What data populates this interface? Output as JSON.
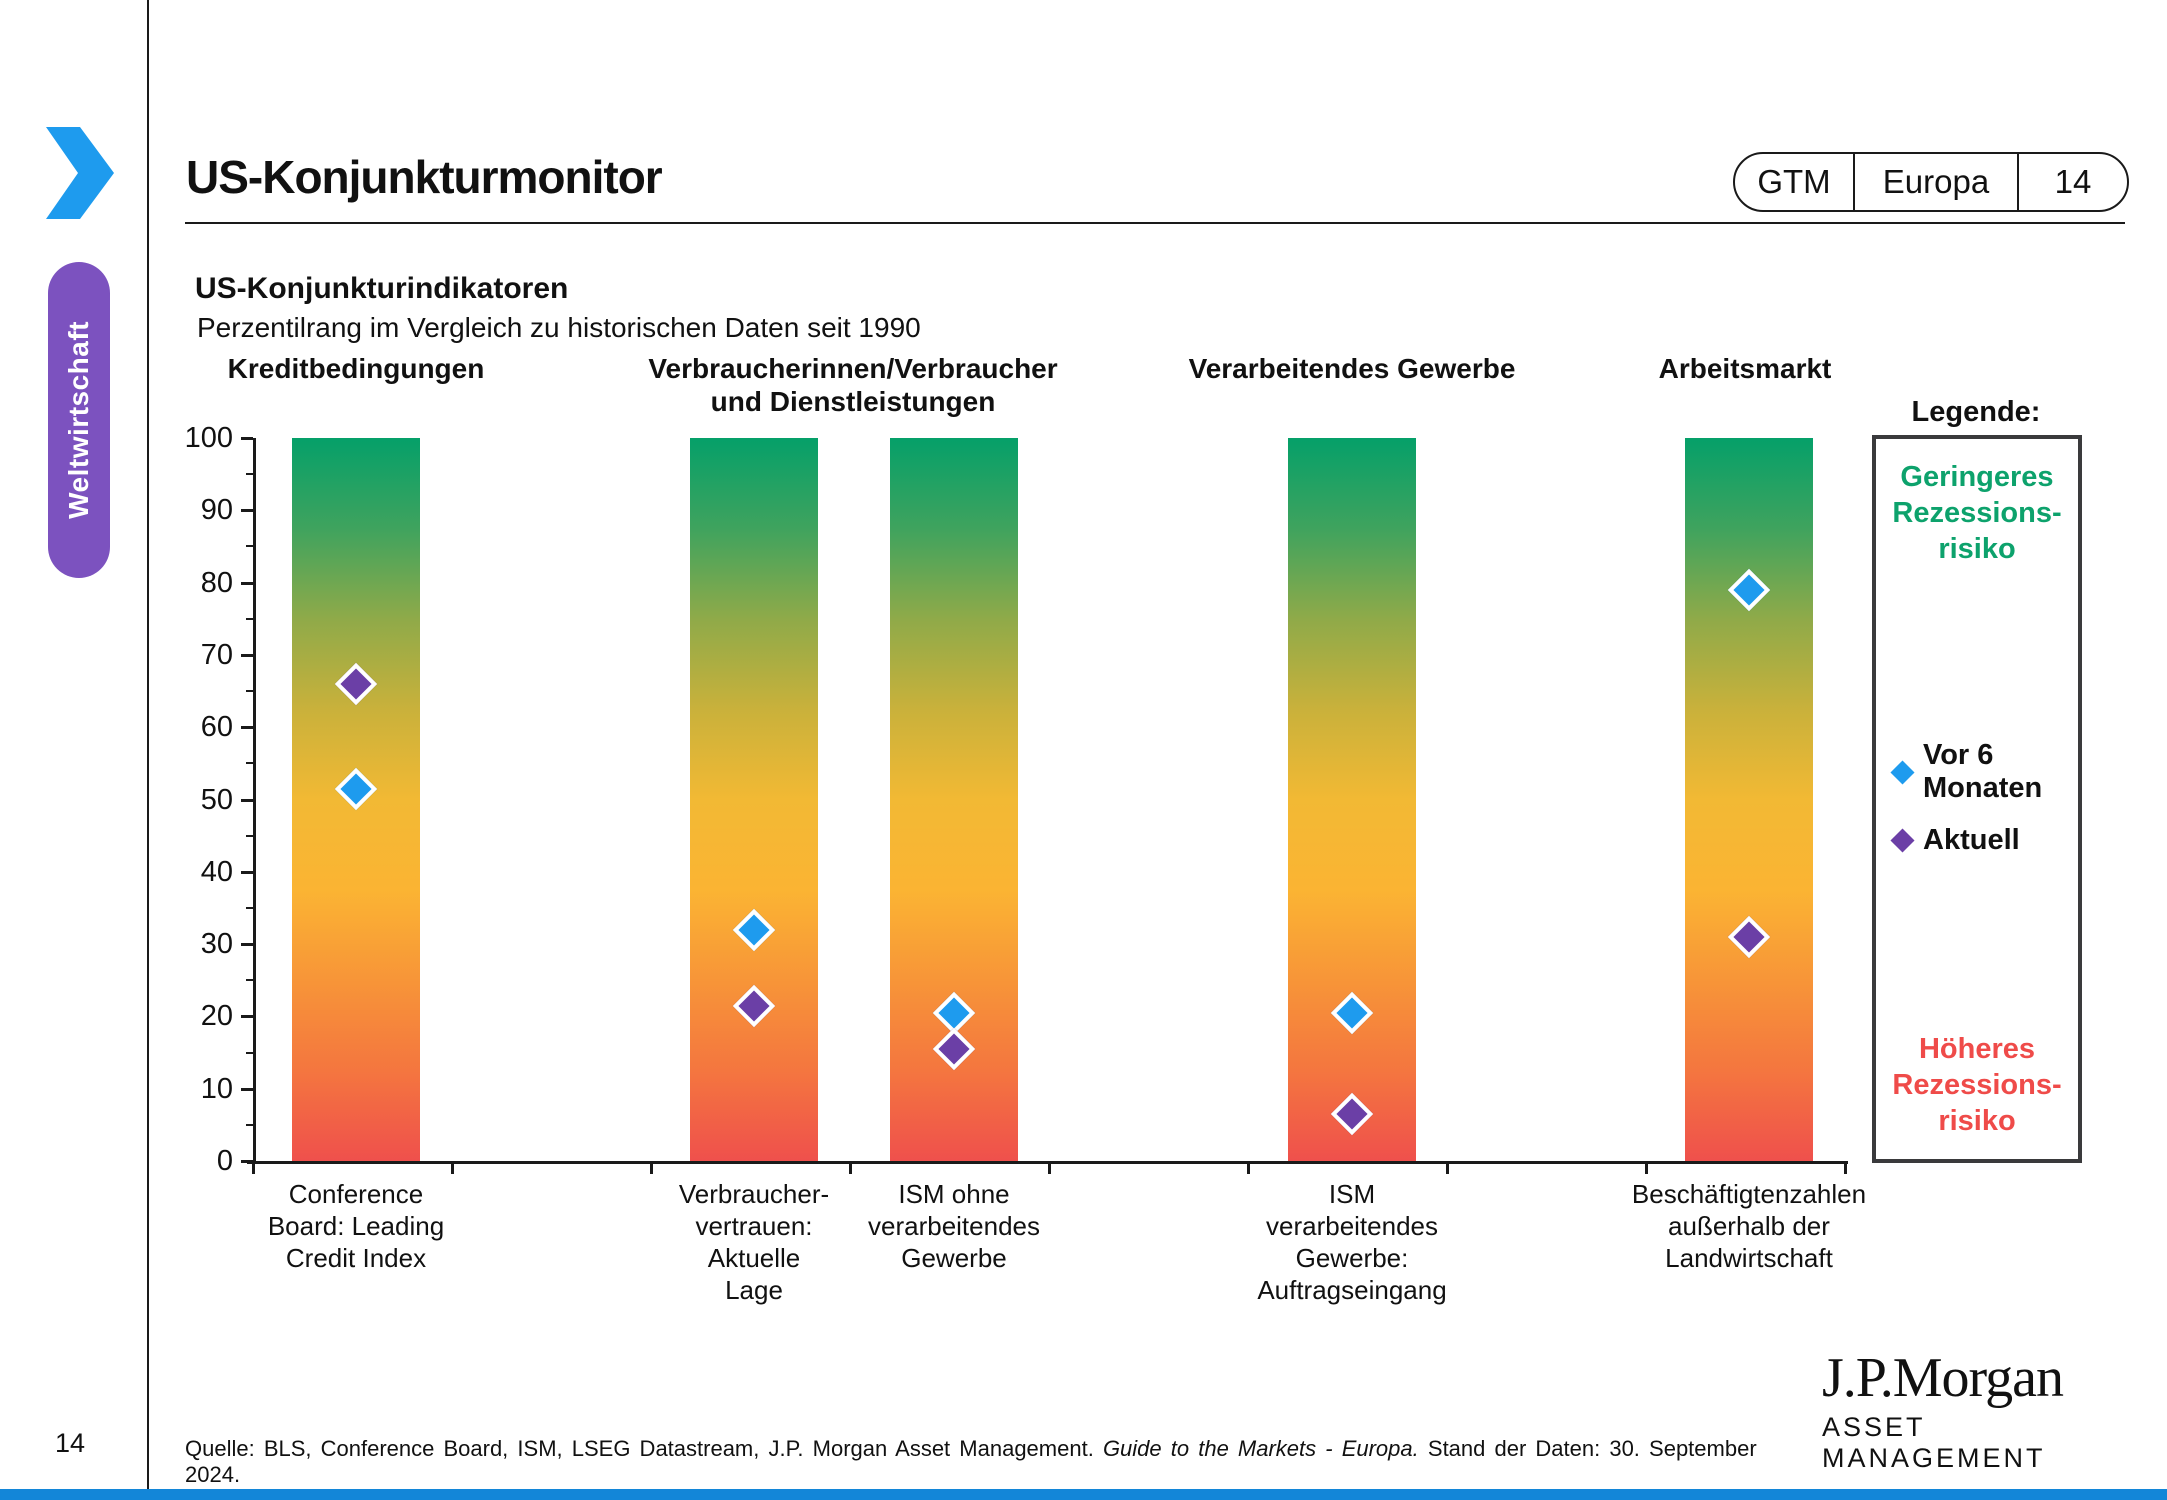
{
  "page": {
    "title": "US-Konjunkturmonitor",
    "sidebar_label": "Weltwirtschaft",
    "page_number": "14",
    "colors": {
      "accent_blue": "#1E9BEE",
      "sidebar_purple": "#7C52BF",
      "footer_bar_blue": "#1386D8"
    }
  },
  "badge": {
    "items": [
      "GTM",
      "Europa",
      "14"
    ]
  },
  "chart_data": {
    "type": "scatter",
    "title": "US-Konjunkturindikatoren",
    "subtitle": "Perzentilrang im Vergleich zu historischen Daten seit 1990",
    "ylim": [
      0,
      100
    ],
    "yticks": [
      0,
      10,
      20,
      30,
      40,
      50,
      60,
      70,
      80,
      90,
      100
    ],
    "grid": false,
    "legend_position": "right",
    "groups": [
      {
        "label": "Kreditbedingungen"
      },
      {
        "label": "Verbraucherinnen/Verbraucher und Dienstleistungen"
      },
      {
        "label": "Verarbeitendes Gewerbe"
      },
      {
        "label": "Arbeitsmarkt"
      }
    ],
    "categories": [
      "Conference\nBoard: Leading\nCredit Index",
      "Verbraucher-\nvertrauen:\nAktuelle\nLage",
      "ISM ohne\nverarbeitendes\nGewerbe",
      "ISM\nverarbeitendes\nGewerbe:\nAuftragseingang",
      "Beschäftigtenzahlen\naußerhalb der\nLandwirtschaft"
    ],
    "series": [
      {
        "name": "Vor 6 Monaten",
        "color": "#1E9BEE",
        "values": [
          51.5,
          32,
          20.5,
          20.5,
          79
        ]
      },
      {
        "name": "Aktuell",
        "color": "#6B3FA6",
        "values": [
          66,
          21.5,
          15.5,
          6.5,
          31
        ]
      }
    ],
    "bar_gradient": [
      "#05A069",
      "#3FA35E",
      "#8FAA49",
      "#C9B13B",
      "#F2B934",
      "#FBB433",
      "#F79538",
      "#F4763F",
      "#EF504C"
    ],
    "legend": {
      "heading": "Legende:",
      "low_risk_label": "Geringeres\nRezessions-\nrisiko",
      "low_risk_color": "#0DA26C",
      "high_risk_label": "Höheres\nRezessions-\nrisiko",
      "high_risk_color": "#EF4B49"
    }
  },
  "footer": {
    "source_prefix": "Quelle:  BLS, Conference Board, ISM, LSEG Datastream, J.P. Morgan Asset Management.",
    "source_italic": "Guide to the Markets - Europa.",
    "source_suffix": "Stand der Daten: 30. September 2024.",
    "logo_line1": "J.P.Morgan",
    "logo_line2": "ASSET MANAGEMENT"
  }
}
